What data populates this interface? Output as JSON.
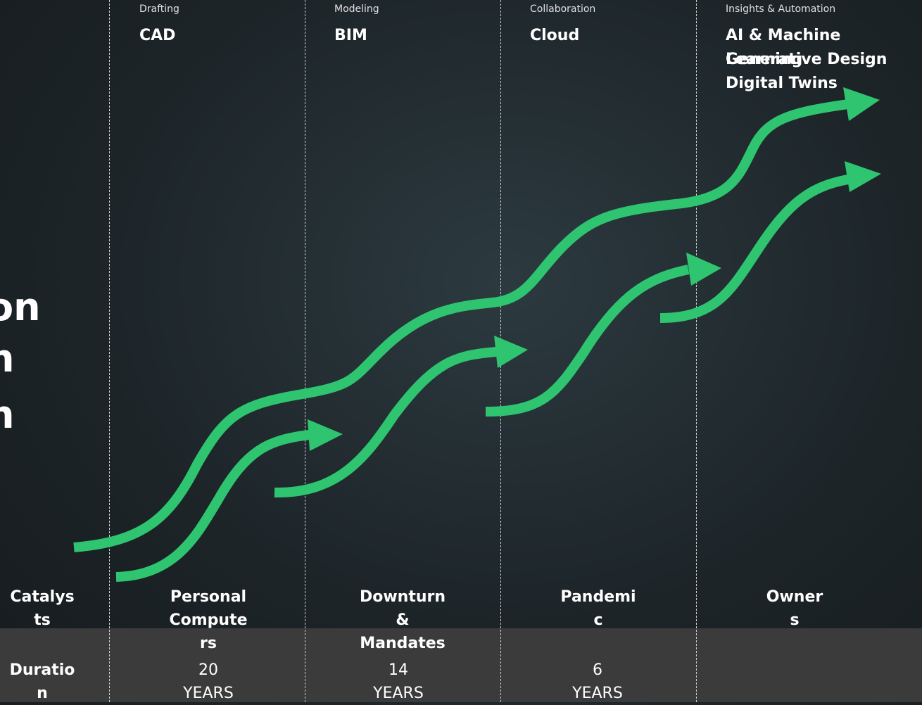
{
  "left_title_fragments": [
    "on",
    "n",
    "n"
  ],
  "phases": [
    {
      "category": "Drafting",
      "technologies": [
        "CAD"
      ]
    },
    {
      "category": "Modeling",
      "technologies": [
        "BIM"
      ]
    },
    {
      "category": "Collaboration",
      "technologies": [
        "Cloud"
      ]
    },
    {
      "category": "Insights & Automation",
      "technologies": [
        "AI & Machine Learning",
        "Generative Design",
        "Digital Twins"
      ]
    }
  ],
  "catalysts": {
    "label": "Catalysts",
    "items": [
      "Personal Computers",
      "Downturn & Mandates",
      "Pandemic",
      "Owners"
    ]
  },
  "duration": {
    "label": "Duration",
    "items": [
      {
        "number": "20",
        "unit": "YEARS"
      },
      {
        "number": "14",
        "unit": "YEARS"
      },
      {
        "number": "6",
        "unit": "YEARS"
      }
    ]
  }
}
